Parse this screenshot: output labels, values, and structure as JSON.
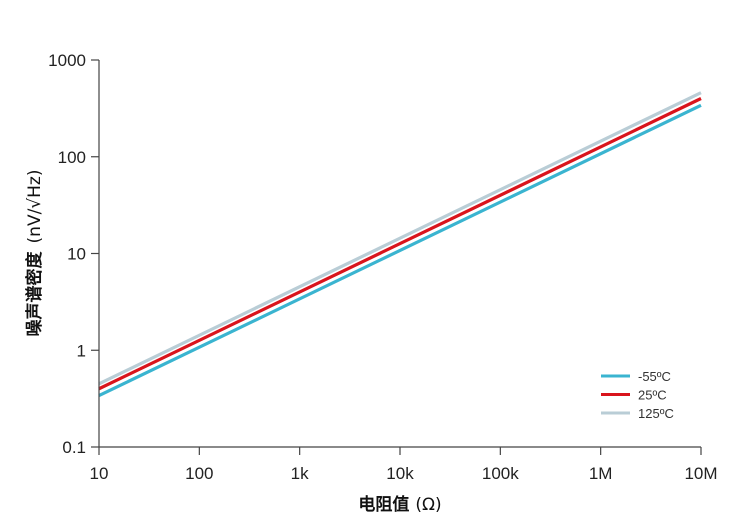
{
  "chart_data": {
    "type": "line",
    "xscale": "log",
    "yscale": "log",
    "x_ticks": [
      {
        "value": 10,
        "label": "10"
      },
      {
        "value": 100,
        "label": "100"
      },
      {
        "value": 1000,
        "label": "1k"
      },
      {
        "value": 10000,
        "label": "10k"
      },
      {
        "value": 100000,
        "label": "100k"
      },
      {
        "value": 1000000,
        "label": "1M"
      },
      {
        "value": 10000000,
        "label": "10M"
      }
    ],
    "y_ticks": [
      {
        "value": 0.1,
        "label": "0.1"
      },
      {
        "value": 1,
        "label": "1"
      },
      {
        "value": 10,
        "label": "10"
      },
      {
        "value": 100,
        "label": "100"
      },
      {
        "value": 1000,
        "label": "1000"
      }
    ],
    "xlim": [
      10,
      10000000
    ],
    "ylim": [
      0.1,
      1000
    ],
    "xlabel_bold": "电阻值",
    "xlabel_unit": "(Ω)",
    "ylabel_bold": "噪声谱密度",
    "ylabel_unit": "(nV/√Hz)",
    "legend_position": "bottom-right",
    "grid": false,
    "series": [
      {
        "name": "-55ºC",
        "color": "#3ab4d0",
        "x": [
          10,
          10000000
        ],
        "y": [
          0.34,
          340
        ]
      },
      {
        "name": "25ºC",
        "color": "#d9141c",
        "x": [
          10,
          10000000
        ],
        "y": [
          0.4,
          400
        ]
      },
      {
        "name": "125ºC",
        "color": "#b9cdd6",
        "x": [
          10,
          10000000
        ],
        "y": [
          0.45,
          460
        ]
      }
    ]
  }
}
